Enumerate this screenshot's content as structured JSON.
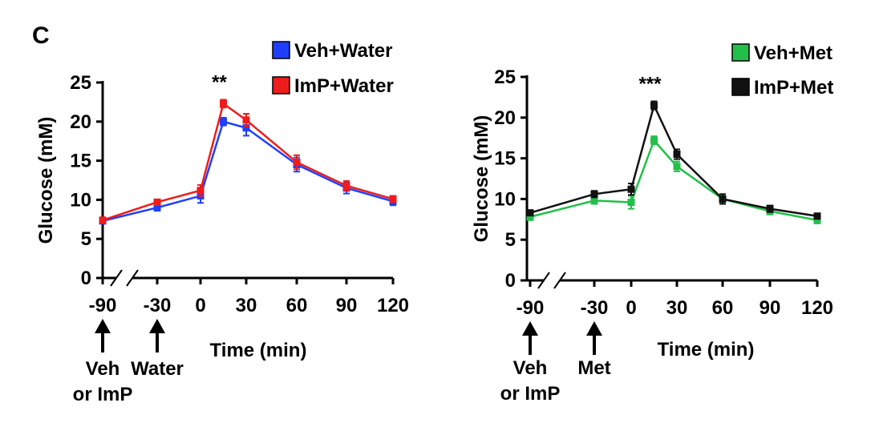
{
  "panel_label": "C",
  "chart_data": [
    {
      "type": "line",
      "xlabel": "Time (min)",
      "ylabel": "Glucose (mM)",
      "xticks": [
        "-90",
        "-30",
        "0",
        "30",
        "60",
        "90",
        "120"
      ],
      "yticks": [
        "0",
        "5",
        "10",
        "15",
        "20",
        "25"
      ],
      "ylim": [
        0,
        25
      ],
      "axis_break": "between -90 and -30",
      "significance": {
        "label": "**",
        "x": 15
      },
      "annotations": [
        {
          "x": -90,
          "lines": [
            "Veh",
            "or ImP"
          ]
        },
        {
          "x": -30,
          "lines": [
            "Water"
          ]
        }
      ],
      "legend_position": "top-right",
      "x": [
        -90,
        -30,
        0,
        15,
        30,
        60,
        90,
        120
      ],
      "series": [
        {
          "name": "Veh+Water",
          "color": "#1f3fff",
          "values": [
            7.3,
            9.0,
            10.5,
            20.0,
            19.2,
            14.5,
            11.5,
            9.8
          ],
          "errors": [
            0.3,
            0.4,
            0.9,
            0.5,
            1.0,
            0.9,
            0.7,
            0.5
          ]
        },
        {
          "name": "ImP+Water",
          "color": "#ee1c1c",
          "values": [
            7.4,
            9.7,
            11.2,
            22.3,
            20.2,
            14.8,
            11.8,
            10.1
          ],
          "errors": [
            0.3,
            0.3,
            0.7,
            0.5,
            0.8,
            0.9,
            0.6,
            0.4
          ]
        }
      ]
    },
    {
      "type": "line",
      "xlabel": "Time (min)",
      "ylabel": "Glucose (mM)",
      "xticks": [
        "-90",
        "-30",
        "0",
        "30",
        "60",
        "90",
        "120"
      ],
      "yticks": [
        "0",
        "5",
        "10",
        "15",
        "20",
        "25"
      ],
      "ylim": [
        0,
        25
      ],
      "axis_break": "between -90 and -30",
      "significance": {
        "label": "***",
        "x": 15
      },
      "annotations": [
        {
          "x": -90,
          "lines": [
            "Veh",
            "or ImP"
          ]
        },
        {
          "x": -30,
          "lines": [
            "Met"
          ]
        }
      ],
      "legend_position": "top-right",
      "x": [
        -90,
        -30,
        0,
        15,
        30,
        60,
        90,
        120
      ],
      "series": [
        {
          "name": "Veh+Met",
          "color": "#22c04a",
          "values": [
            7.8,
            9.8,
            9.6,
            17.2,
            14.0,
            10.0,
            8.5,
            7.4
          ],
          "errors": [
            0.4,
            0.4,
            0.8,
            0.5,
            0.6,
            0.5,
            0.4,
            0.4
          ]
        },
        {
          "name": "ImP+Met",
          "color": "#111111",
          "values": [
            8.3,
            10.6,
            11.2,
            21.5,
            15.5,
            10.0,
            8.8,
            7.9
          ],
          "errors": [
            0.3,
            0.4,
            0.7,
            0.5,
            0.6,
            0.6,
            0.4,
            0.3
          ]
        }
      ]
    }
  ]
}
